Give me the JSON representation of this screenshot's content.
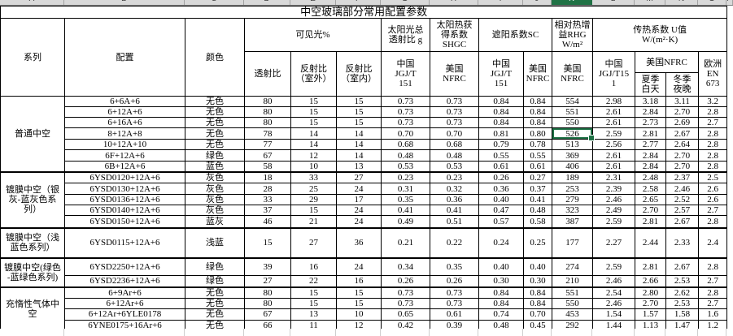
{
  "title": "中空玻璃部分常用配置参数",
  "column_letters": [
    "A",
    "B",
    "C",
    "D",
    "E",
    "F",
    "G",
    "H",
    "I",
    "J",
    "K",
    "L",
    "M",
    "N",
    "O",
    "P"
  ],
  "colors": {
    "selection_green": "#217346",
    "header_strip_bg": "#d9d9d9",
    "gridline_gray": "#cfcfcf",
    "table_border": "#000000"
  },
  "header": {
    "series": "系列",
    "config": "配置",
    "color": "颜色",
    "visible_light": "可见光%",
    "vl_trans": "透射比",
    "vl_refl_out": "反射比\n（室外）",
    "vl_refl_in": "反射比\n（室内）",
    "g_total": "太阳光总\n透射比 g",
    "shgc": "太阳热获\n得系数\nSHGC",
    "sc": "遮阳系数SC",
    "rhg": "相对热增\n益RHG\nW/m²",
    "u_value": "传热系数 U值\nW/(m²·K)",
    "china_jgjt151": "中国\nJGJ/T\n151",
    "us_nfrc": "美国\nNFRC",
    "china_jgjt151_u": "中国\nJGJ/T15\n1",
    "us_nfrc_u": "美国NFRC",
    "summer_day": "夏季\n白天",
    "winter_night": "冬季\n夜晚",
    "europe_en673": "欧洲\nEN\n673"
  },
  "groups": [
    {
      "label": "普通中空",
      "rows": [
        [
          "6+6A+6",
          "无色",
          "80",
          "15",
          "15",
          "0.73",
          "0.73",
          "0.84",
          "0.84",
          "554",
          "2.98",
          "3.18",
          "3.11",
          "3.2"
        ],
        [
          "6+12A+6",
          "无色",
          "80",
          "15",
          "15",
          "0.73",
          "0.73",
          "0.84",
          "0.84",
          "551",
          "2.61",
          "2.84",
          "2.70",
          "2.8"
        ],
        [
          "6+16A+6",
          "无色",
          "80",
          "15",
          "15",
          "0.73",
          "0.73",
          "0.84",
          "0.84",
          "550",
          "2.61",
          "2.73",
          "2.69",
          "2.7"
        ],
        [
          "8+12A+8",
          "无色",
          "78",
          "14",
          "14",
          "0.70",
          "0.70",
          "0.81",
          "0.80",
          "526",
          "2.59",
          "2.81",
          "2.67",
          "2.8"
        ],
        [
          "10+12A+10",
          "无色",
          "77",
          "14",
          "14",
          "0.68",
          "0.68",
          "0.79",
          "0.78",
          "513",
          "2.56",
          "2.77",
          "2.64",
          "2.8"
        ],
        [
          "6F+12A+6",
          "绿色",
          "67",
          "12",
          "14",
          "0.48",
          "0.48",
          "0.55",
          "0.55",
          "369",
          "2.61",
          "2.84",
          "2.70",
          "2.8"
        ],
        [
          "6B+12A+6",
          "蓝色",
          "58",
          "10",
          "13",
          "0.53",
          "0.53",
          "0.61",
          "0.61",
          "406",
          "2.61",
          "2.84",
          "2.70",
          "2.8"
        ]
      ]
    },
    {
      "label": "镀膜中空（银\n灰-蓝灰色系\n列）",
      "rows": [
        [
          "6YSD0120+12A+6",
          "灰色",
          "18",
          "33",
          "27",
          "0.23",
          "0.23",
          "0.26",
          "0.27",
          "189",
          "2.31",
          "2.48",
          "2.37",
          "2.5"
        ],
        [
          "6YSD0130+12A+6",
          "灰色",
          "28",
          "25",
          "24",
          "0.31",
          "0.32",
          "0.36",
          "0.37",
          "253",
          "2.39",
          "2.58",
          "2.46",
          "2.6"
        ],
        [
          "6YSD0136+12A+6",
          "灰色",
          "33",
          "29",
          "17",
          "0.35",
          "0.36",
          "0.40",
          "0.41",
          "279",
          "2.46",
          "2.65",
          "2.52",
          "2.6"
        ],
        [
          "6YSD0140+12A+6",
          "灰色",
          "37",
          "15",
          "24",
          "0.41",
          "0.41",
          "0.47",
          "0.48",
          "323",
          "2.49",
          "2.70",
          "2.57",
          "2.7"
        ],
        [
          "6YSD0150+12A+6",
          "蓝灰",
          "46",
          "21",
          "24",
          "0.49",
          "0.51",
          "0.57",
          "0.58",
          "387",
          "2.59",
          "2.81",
          "2.67",
          "2.8"
        ]
      ]
    },
    {
      "label": "镀膜中空（浅\n蓝色系列）",
      "rows": [
        [
          "6YSD0115+12A+6",
          "浅蓝",
          "15",
          "27",
          "36",
          "0.21",
          "0.22",
          "0.24",
          "0.25",
          "177",
          "2.27",
          "2.44",
          "2.33",
          "2.4"
        ]
      ]
    },
    {
      "label": "镀膜中空(绿色\n-蓝绿色系列)",
      "rows": [
        [
          "6YSD2250+12A+6",
          "绿色",
          "39",
          "16",
          "24",
          "0.34",
          "0.35",
          "0.40",
          "0.40",
          "274",
          "2.59",
          "2.81",
          "2.67",
          "2.8"
        ],
        [
          "6YSD2236+12A+6",
          "绿色",
          "27",
          "22",
          "16",
          "0.26",
          "0.26",
          "0.30",
          "0.30",
          "210",
          "2.46",
          "2.66",
          "2.53",
          "2.7"
        ]
      ]
    },
    {
      "label": "充惰性气体中\n空",
      "rows": [
        [
          "6+9Ar+6",
          "无色",
          "80",
          "15",
          "15",
          "0.73",
          "0.73",
          "0.84",
          "0.84",
          "551",
          "2.54",
          "2.80",
          "2.62",
          "2.8"
        ],
        [
          "6+12Ar+6",
          "无色",
          "80",
          "15",
          "15",
          "0.73",
          "0.73",
          "0.84",
          "0.84",
          "550",
          "2.46",
          "2.70",
          "2.53",
          "2.7"
        ],
        [
          "6+12Ar+6YLE0178",
          "无色",
          "67",
          "13",
          "10",
          "0.65",
          "0.61",
          "0.74",
          "0.70",
          "453",
          "1.54",
          "1.57",
          "1.58",
          "1.6"
        ],
        [
          "6YNE0175+16Ar+6",
          "无色",
          "66",
          "11",
          "12",
          "0.42",
          "0.39",
          "0.48",
          "0.45",
          "292",
          "1.44",
          "1.13",
          "1.47",
          "1.2"
        ]
      ]
    }
  ],
  "selection": {
    "group_index": 0,
    "row_index": 3,
    "cell_index": 9,
    "strip_col_index": 10,
    "value": "526"
  }
}
